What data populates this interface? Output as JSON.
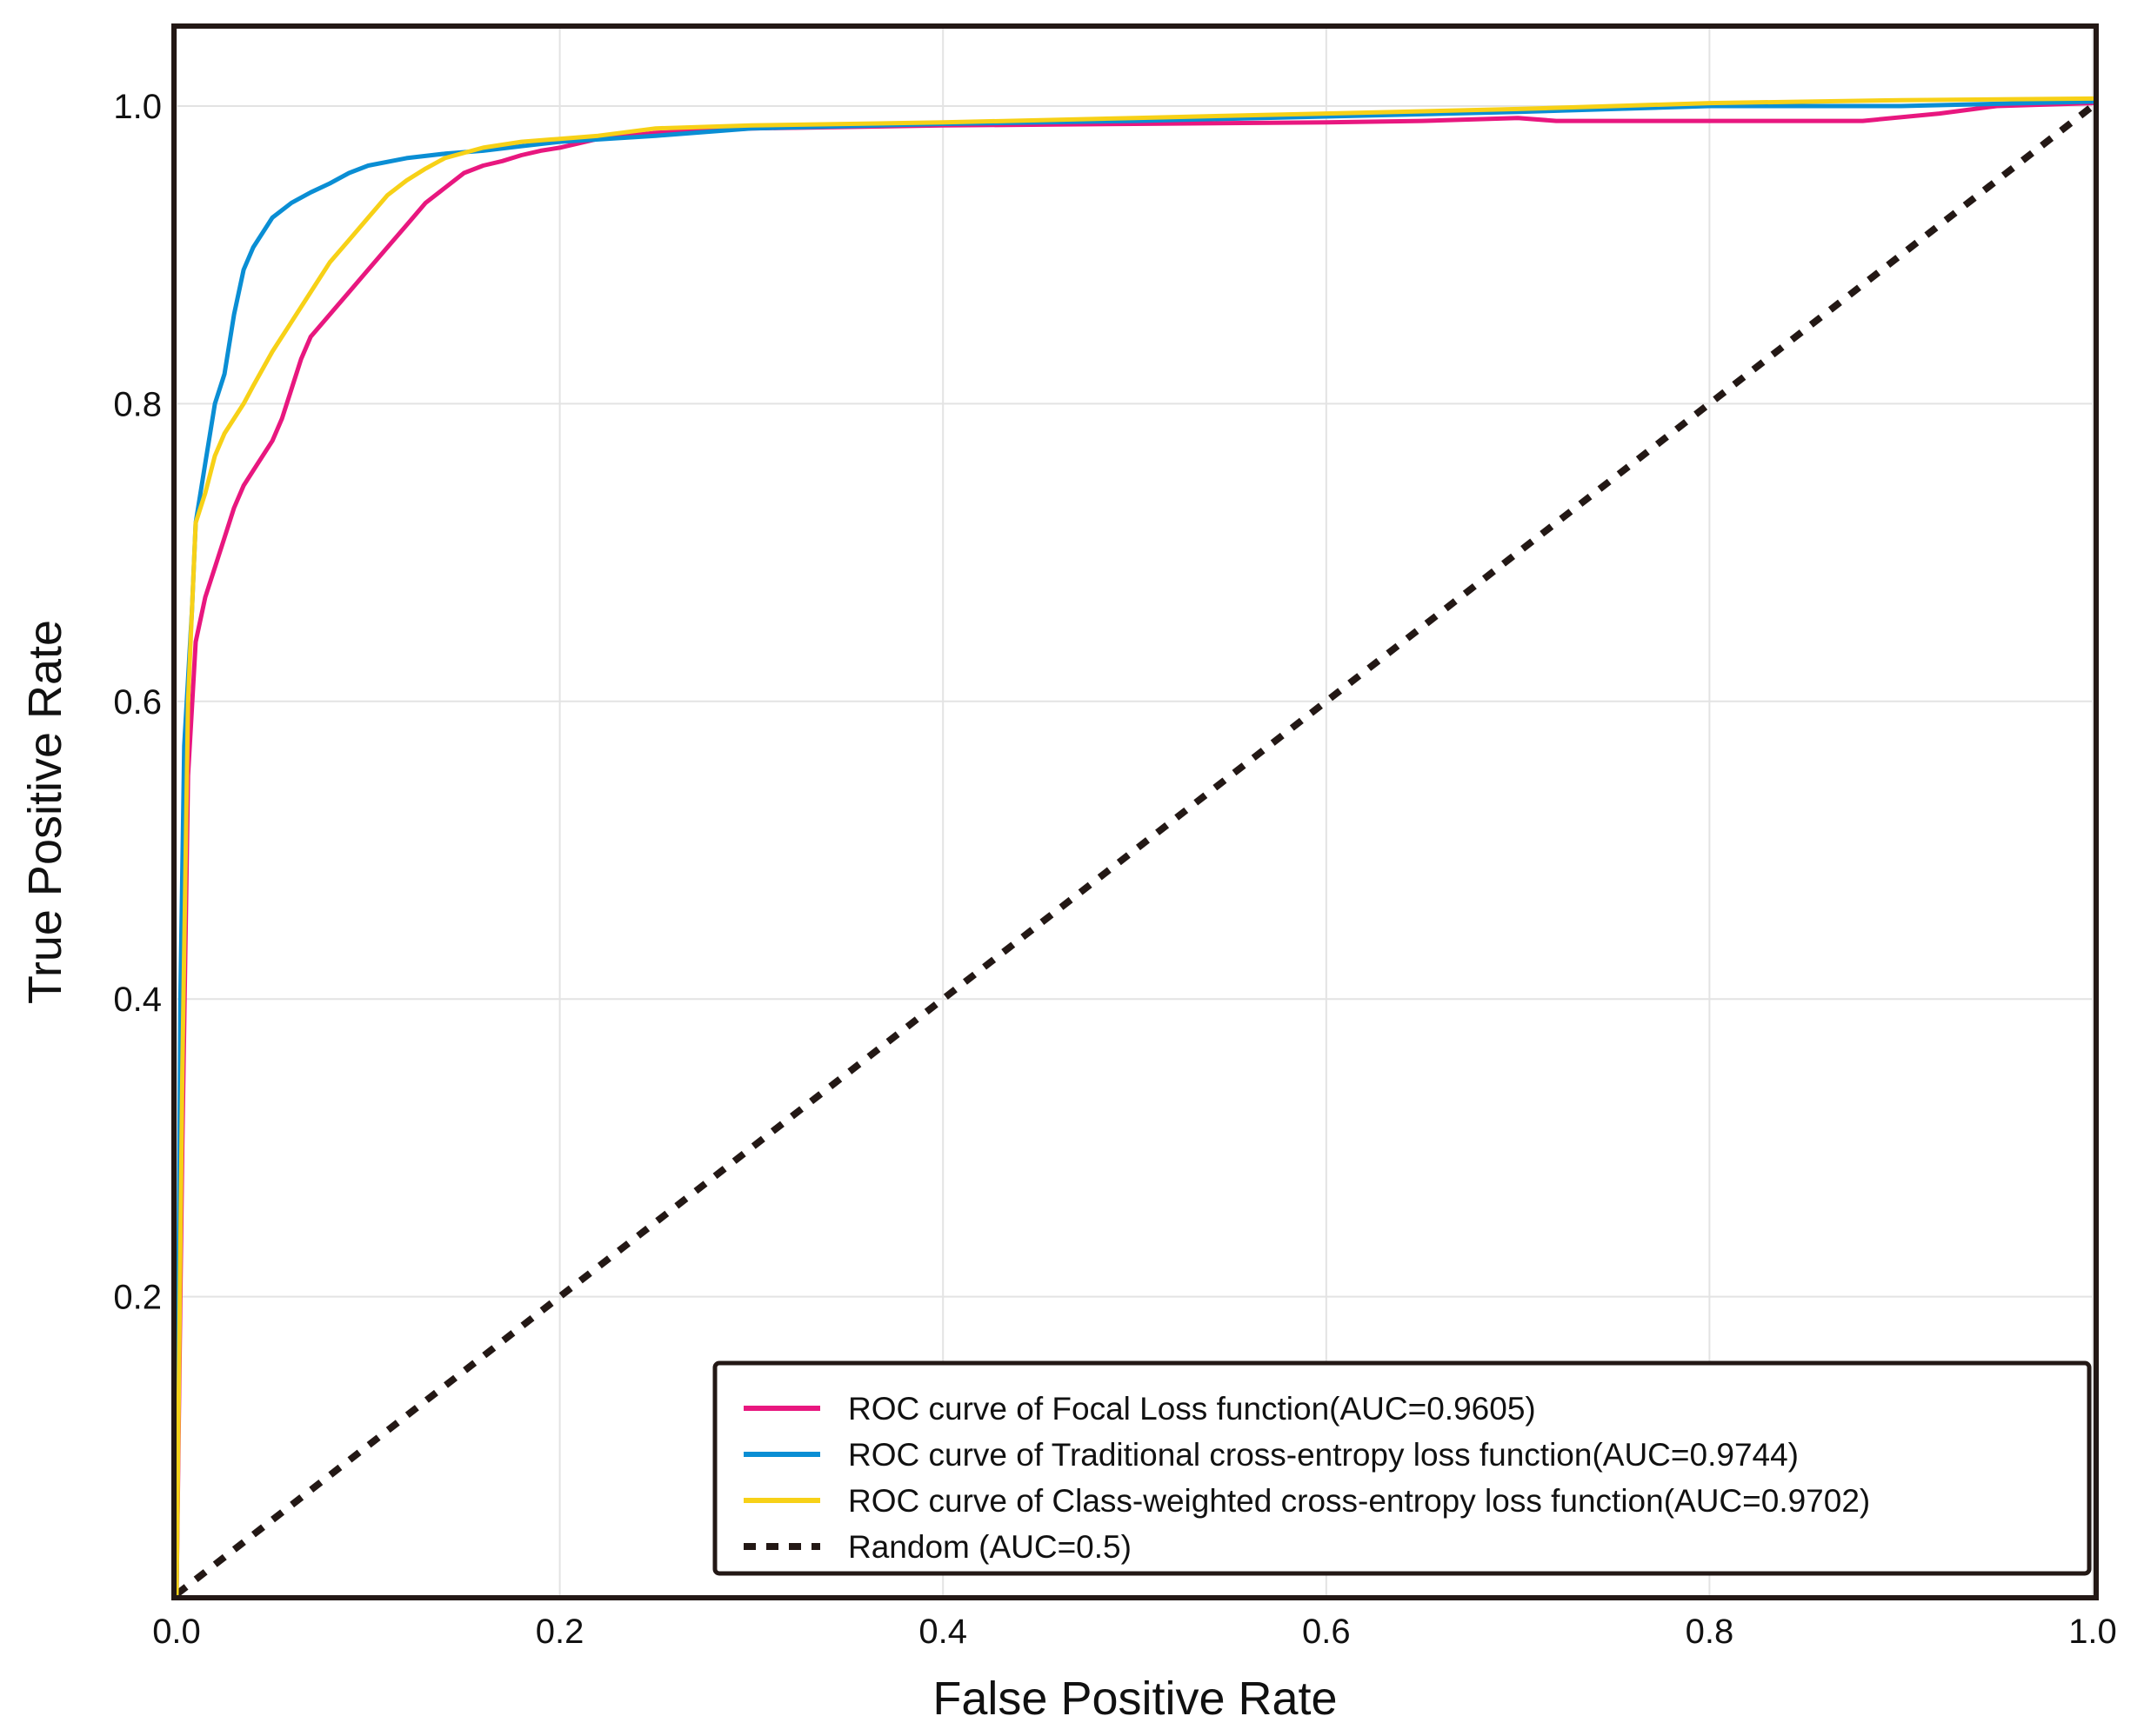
{
  "chart_data": {
    "type": "line",
    "title": "",
    "xlabel": "False Positive Rate",
    "ylabel": "True Positive Rate",
    "xlim": [
      0.0,
      1.0
    ],
    "ylim": [
      0.0,
      1.05
    ],
    "grid": true,
    "legend_position": "bottom-right",
    "x_ticks": [
      "0.0",
      "0.2",
      "0.4",
      "0.6",
      "0.8",
      "1.0"
    ],
    "y_ticks": [
      "0.2",
      "0.4",
      "0.6",
      "0.8",
      "1.0"
    ],
    "series": [
      {
        "name": "ROC curve of Focal Loss function(AUC=0.9605)",
        "color": "#e8177f",
        "dash": "solid",
        "points": [
          [
            0.0,
            0.0
          ],
          [
            0.003,
            0.3
          ],
          [
            0.006,
            0.55
          ],
          [
            0.01,
            0.64
          ],
          [
            0.015,
            0.67
          ],
          [
            0.02,
            0.69
          ],
          [
            0.025,
            0.71
          ],
          [
            0.03,
            0.73
          ],
          [
            0.035,
            0.745
          ],
          [
            0.04,
            0.755
          ],
          [
            0.05,
            0.775
          ],
          [
            0.055,
            0.79
          ],
          [
            0.06,
            0.81
          ],
          [
            0.065,
            0.83
          ],
          [
            0.07,
            0.845
          ],
          [
            0.08,
            0.86
          ],
          [
            0.09,
            0.875
          ],
          [
            0.1,
            0.89
          ],
          [
            0.11,
            0.905
          ],
          [
            0.12,
            0.92
          ],
          [
            0.13,
            0.935
          ],
          [
            0.14,
            0.945
          ],
          [
            0.15,
            0.955
          ],
          [
            0.16,
            0.96
          ],
          [
            0.17,
            0.963
          ],
          [
            0.18,
            0.967
          ],
          [
            0.19,
            0.97
          ],
          [
            0.2,
            0.972
          ],
          [
            0.22,
            0.978
          ],
          [
            0.25,
            0.982
          ],
          [
            0.3,
            0.985
          ],
          [
            0.4,
            0.987
          ],
          [
            0.5,
            0.988
          ],
          [
            0.6,
            0.989
          ],
          [
            0.65,
            0.99
          ],
          [
            0.7,
            0.992
          ],
          [
            0.72,
            0.99
          ],
          [
            0.8,
            0.99
          ],
          [
            0.85,
            0.99
          ],
          [
            0.88,
            0.99
          ],
          [
            0.92,
            0.995
          ],
          [
            0.95,
            1.0
          ],
          [
            1.0,
            1.002
          ]
        ]
      },
      {
        "name": "ROC curve of Traditional cross-entropy loss function(AUC=0.9744)",
        "color": "#0a8ed4",
        "dash": "solid",
        "points": [
          [
            0.0,
            0.0
          ],
          [
            0.002,
            0.4
          ],
          [
            0.004,
            0.57
          ],
          [
            0.008,
            0.66
          ],
          [
            0.01,
            0.72
          ],
          [
            0.015,
            0.76
          ],
          [
            0.02,
            0.8
          ],
          [
            0.025,
            0.82
          ],
          [
            0.03,
            0.86
          ],
          [
            0.035,
            0.89
          ],
          [
            0.04,
            0.905
          ],
          [
            0.05,
            0.925
          ],
          [
            0.06,
            0.935
          ],
          [
            0.07,
            0.942
          ],
          [
            0.08,
            0.948
          ],
          [
            0.09,
            0.955
          ],
          [
            0.1,
            0.96
          ],
          [
            0.12,
            0.965
          ],
          [
            0.14,
            0.968
          ],
          [
            0.16,
            0.97
          ],
          [
            0.18,
            0.973
          ],
          [
            0.2,
            0.976
          ],
          [
            0.25,
            0.98
          ],
          [
            0.3,
            0.985
          ],
          [
            0.4,
            0.988
          ],
          [
            0.5,
            0.99
          ],
          [
            0.6,
            0.993
          ],
          [
            0.7,
            0.996
          ],
          [
            0.8,
            1.0
          ],
          [
            0.9,
            1.0
          ],
          [
            1.0,
            1.003
          ]
        ]
      },
      {
        "name": "ROC curve of Class-weighted cross-entropy loss function(AUC=0.9702)",
        "color": "#f7d117",
        "dash": "solid",
        "points": [
          [
            0.0,
            0.0
          ],
          [
            0.003,
            0.35
          ],
          [
            0.006,
            0.6
          ],
          [
            0.01,
            0.72
          ],
          [
            0.015,
            0.74
          ],
          [
            0.02,
            0.765
          ],
          [
            0.025,
            0.78
          ],
          [
            0.03,
            0.79
          ],
          [
            0.035,
            0.8
          ],
          [
            0.04,
            0.812
          ],
          [
            0.05,
            0.835
          ],
          [
            0.06,
            0.855
          ],
          [
            0.07,
            0.875
          ],
          [
            0.08,
            0.895
          ],
          [
            0.09,
            0.91
          ],
          [
            0.1,
            0.925
          ],
          [
            0.11,
            0.94
          ],
          [
            0.12,
            0.95
          ],
          [
            0.13,
            0.958
          ],
          [
            0.14,
            0.965
          ],
          [
            0.16,
            0.972
          ],
          [
            0.18,
            0.976
          ],
          [
            0.2,
            0.978
          ],
          [
            0.22,
            0.98
          ],
          [
            0.25,
            0.985
          ],
          [
            0.3,
            0.987
          ],
          [
            0.4,
            0.989
          ],
          [
            0.5,
            0.992
          ],
          [
            0.6,
            0.995
          ],
          [
            0.7,
            0.998
          ],
          [
            0.75,
            1.0
          ],
          [
            0.8,
            1.002
          ],
          [
            0.9,
            1.004
          ],
          [
            1.0,
            1.005
          ]
        ]
      },
      {
        "name": "Random (AUC=0.5)",
        "color": "#231815",
        "dash": "dashed",
        "points": [
          [
            0.0,
            0.0
          ],
          [
            1.0,
            1.0
          ]
        ]
      }
    ]
  }
}
